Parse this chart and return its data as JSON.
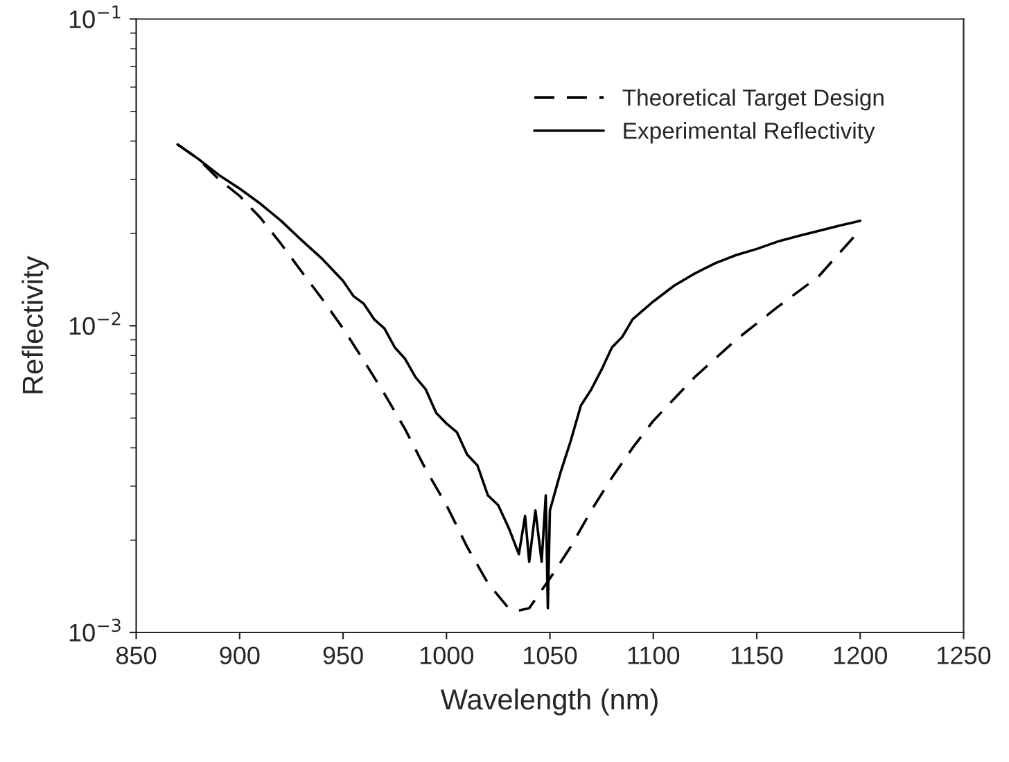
{
  "chart_data": {
    "type": "line",
    "xlabel": "Wavelength (nm)",
    "ylabel": "Reflectivity",
    "log": "y",
    "xlim": [
      850,
      1250
    ],
    "xticks": [
      850,
      900,
      950,
      1000,
      1050,
      1100,
      1150,
      1200,
      1250
    ],
    "ylim": [
      0.001,
      0.1
    ],
    "yticks": [
      {
        "value": 0.001,
        "label": "10$^{−3}$"
      },
      {
        "value": 0.01,
        "label": "10$^{−2}$"
      },
      {
        "value": 0.1,
        "label": "10$^{−1}$"
      }
    ],
    "grid": false,
    "legend": "top right",
    "series": [
      {
        "name": "Theoretical Target Design",
        "color": "#000000",
        "line_style": "dashed",
        "x": [
          870,
          880,
          890,
          900,
          910,
          920,
          930,
          940,
          950,
          960,
          970,
          980,
          990,
          1000,
          1010,
          1020,
          1030,
          1035,
          1040,
          1050,
          1060,
          1070,
          1080,
          1090,
          1100,
          1120,
          1140,
          1160,
          1180,
          1197
        ],
        "values": [
          0.039,
          0.035,
          0.03,
          0.0265,
          0.0225,
          0.0185,
          0.015,
          0.0122,
          0.0098,
          0.0077,
          0.006,
          0.0046,
          0.0034,
          0.0026,
          0.0019,
          0.00145,
          0.0012,
          0.00118,
          0.0012,
          0.0015,
          0.0019,
          0.0025,
          0.0032,
          0.004,
          0.0049,
          0.0068,
          0.009,
          0.0115,
          0.0145,
          0.0195
        ]
      },
      {
        "name": "Experimental Reflectivity",
        "color": "#000000",
        "line_style": "solid",
        "x": [
          870,
          880,
          890,
          900,
          910,
          920,
          930,
          940,
          950,
          955,
          960,
          965,
          970,
          975,
          980,
          985,
          990,
          995,
          1000,
          1005,
          1010,
          1015,
          1020,
          1025,
          1030,
          1035,
          1038,
          1040,
          1043,
          1046,
          1048,
          1049,
          1050,
          1055,
          1060,
          1065,
          1070,
          1075,
          1080,
          1085,
          1090,
          1100,
          1110,
          1120,
          1130,
          1140,
          1150,
          1160,
          1170,
          1180,
          1190,
          1200
        ],
        "values": [
          0.039,
          0.035,
          0.031,
          0.028,
          0.025,
          0.022,
          0.019,
          0.0165,
          0.014,
          0.0125,
          0.0118,
          0.0105,
          0.0098,
          0.0085,
          0.0078,
          0.0068,
          0.0062,
          0.0052,
          0.0048,
          0.0045,
          0.0038,
          0.0035,
          0.0028,
          0.0026,
          0.0022,
          0.0018,
          0.0024,
          0.0017,
          0.0025,
          0.0017,
          0.0028,
          0.0012,
          0.0025,
          0.0033,
          0.0042,
          0.0055,
          0.0062,
          0.0072,
          0.0085,
          0.0092,
          0.0105,
          0.012,
          0.0135,
          0.0148,
          0.016,
          0.017,
          0.0178,
          0.0188,
          0.0196,
          0.0204,
          0.0212,
          0.022
        ]
      }
    ]
  }
}
